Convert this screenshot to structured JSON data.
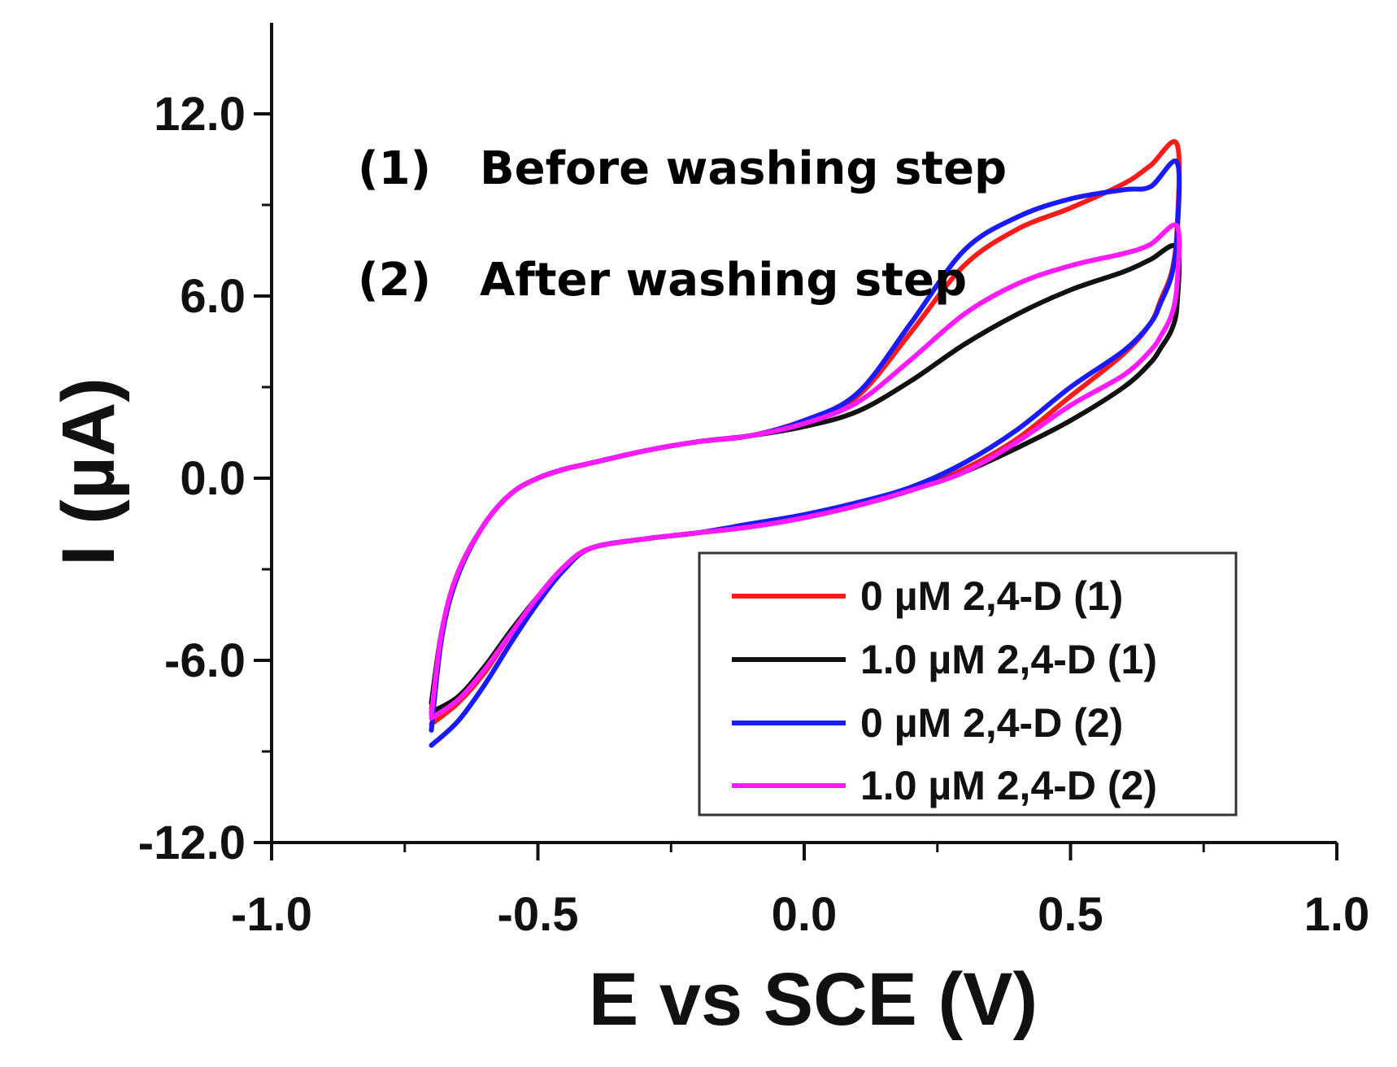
{
  "chart_data": {
    "type": "line",
    "xlabel": "E vs SCE (V)",
    "ylabel": "I (µA)",
    "xlim": [
      -1.0,
      1.0
    ],
    "ylim": [
      -12.0,
      15.0
    ],
    "x_ticks": [
      -1.0,
      -0.5,
      0.0,
      0.5,
      1.0
    ],
    "x_tick_labels": [
      "-1.0",
      "-0.5",
      "0.0",
      "0.5",
      "1.0"
    ],
    "y_ticks": [
      -12.0,
      -6.0,
      0.0,
      6.0,
      12.0
    ],
    "y_tick_labels": [
      "-12.0",
      "-6.0",
      "0.0",
      "6.0",
      "12.0"
    ],
    "annotations": [
      {
        "num": "(1)",
        "text": "Before washing step"
      },
      {
        "num": "(2)",
        "text": "After washing step"
      }
    ],
    "legend_position": "bottom-right",
    "series": [
      {
        "name": "0 µM 2,4-D (1)",
        "color": "#ff1a1a",
        "x": [
          -0.7,
          -0.68,
          -0.65,
          -0.6,
          -0.55,
          -0.5,
          -0.45,
          -0.4,
          -0.3,
          -0.2,
          -0.1,
          0.0,
          0.1,
          0.2,
          0.3,
          0.4,
          0.5,
          0.6,
          0.65,
          0.7,
          0.7,
          0.69,
          0.67,
          0.65,
          0.6,
          0.5,
          0.4,
          0.3,
          0.2,
          0.1,
          0.0,
          -0.1,
          -0.2,
          -0.3,
          -0.4,
          -0.45,
          -0.5,
          -0.55,
          -0.6,
          -0.65,
          -0.7
        ],
        "y": [
          -7.6,
          -5.0,
          -3.1,
          -1.5,
          -0.5,
          0.0,
          0.3,
          0.5,
          0.9,
          1.2,
          1.4,
          1.9,
          2.7,
          4.8,
          7.0,
          8.2,
          8.9,
          9.7,
          10.3,
          11.0,
          8.2,
          6.8,
          5.9,
          5.1,
          4.1,
          2.7,
          1.3,
          0.3,
          -0.4,
          -0.9,
          -1.3,
          -1.6,
          -1.8,
          -2.0,
          -2.3,
          -2.9,
          -3.9,
          -5.1,
          -6.4,
          -7.4,
          -8.1
        ]
      },
      {
        "name": "1.0 µM 2,4-D (1)",
        "color": "#111111",
        "x": [
          -0.7,
          -0.68,
          -0.65,
          -0.6,
          -0.55,
          -0.5,
          -0.45,
          -0.4,
          -0.3,
          -0.2,
          -0.1,
          0.0,
          0.1,
          0.2,
          0.3,
          0.4,
          0.5,
          0.6,
          0.65,
          0.7,
          0.7,
          0.69,
          0.67,
          0.65,
          0.6,
          0.5,
          0.4,
          0.3,
          0.2,
          0.1,
          0.0,
          -0.1,
          -0.2,
          -0.3,
          -0.4,
          -0.45,
          -0.5,
          -0.55,
          -0.6,
          -0.65,
          -0.7
        ],
        "y": [
          -7.4,
          -5.0,
          -3.1,
          -1.5,
          -0.5,
          0.0,
          0.3,
          0.5,
          0.9,
          1.2,
          1.4,
          1.7,
          2.2,
          3.2,
          4.4,
          5.4,
          6.2,
          6.8,
          7.2,
          7.6,
          5.7,
          4.9,
          4.3,
          3.8,
          3.0,
          1.9,
          1.0,
          0.2,
          -0.4,
          -0.9,
          -1.3,
          -1.6,
          -1.8,
          -2.0,
          -2.3,
          -2.9,
          -3.9,
          -5.0,
          -6.2,
          -7.2,
          -7.7
        ]
      },
      {
        "name": "0 µM 2,4-D (2)",
        "color": "#1a1aff",
        "x": [
          -0.7,
          -0.68,
          -0.65,
          -0.6,
          -0.55,
          -0.5,
          -0.45,
          -0.4,
          -0.3,
          -0.2,
          -0.1,
          0.0,
          0.1,
          0.2,
          0.3,
          0.4,
          0.5,
          0.6,
          0.65,
          0.7,
          0.7,
          0.69,
          0.67,
          0.65,
          0.6,
          0.5,
          0.4,
          0.3,
          0.2,
          0.1,
          0.0,
          -0.1,
          -0.2,
          -0.3,
          -0.4,
          -0.45,
          -0.5,
          -0.55,
          -0.6,
          -0.65,
          -0.7
        ],
        "y": [
          -8.3,
          -5.2,
          -3.2,
          -1.5,
          -0.5,
          0.0,
          0.3,
          0.5,
          0.9,
          1.2,
          1.4,
          1.9,
          2.8,
          5.1,
          7.5,
          8.6,
          9.2,
          9.5,
          9.6,
          10.4,
          8.0,
          6.7,
          5.8,
          5.1,
          4.2,
          3.0,
          1.6,
          0.5,
          -0.3,
          -0.8,
          -1.2,
          -1.5,
          -1.8,
          -2.0,
          -2.3,
          -3.0,
          -4.1,
          -5.4,
          -6.8,
          -8.0,
          -8.8
        ]
      },
      {
        "name": "1.0 µM 2,4-D (2)",
        "color": "#ff1aff",
        "x": [
          -0.7,
          -0.68,
          -0.65,
          -0.6,
          -0.55,
          -0.5,
          -0.45,
          -0.4,
          -0.3,
          -0.2,
          -0.1,
          0.0,
          0.1,
          0.2,
          0.3,
          0.4,
          0.5,
          0.6,
          0.65,
          0.7,
          0.7,
          0.69,
          0.67,
          0.65,
          0.6,
          0.5,
          0.4,
          0.3,
          0.2,
          0.1,
          0.0,
          -0.1,
          -0.2,
          -0.3,
          -0.4,
          -0.45,
          -0.5,
          -0.55,
          -0.6,
          -0.65,
          -0.7
        ],
        "y": [
          -7.8,
          -5.0,
          -3.1,
          -1.5,
          -0.5,
          0.0,
          0.3,
          0.5,
          0.9,
          1.2,
          1.4,
          1.8,
          2.5,
          3.9,
          5.4,
          6.4,
          7.0,
          7.4,
          7.7,
          8.3,
          6.4,
          5.4,
          4.7,
          4.2,
          3.4,
          2.4,
          1.2,
          0.2,
          -0.4,
          -0.9,
          -1.3,
          -1.6,
          -1.8,
          -2.0,
          -2.3,
          -2.9,
          -3.9,
          -5.1,
          -6.3,
          -7.3,
          -7.9
        ]
      }
    ]
  }
}
